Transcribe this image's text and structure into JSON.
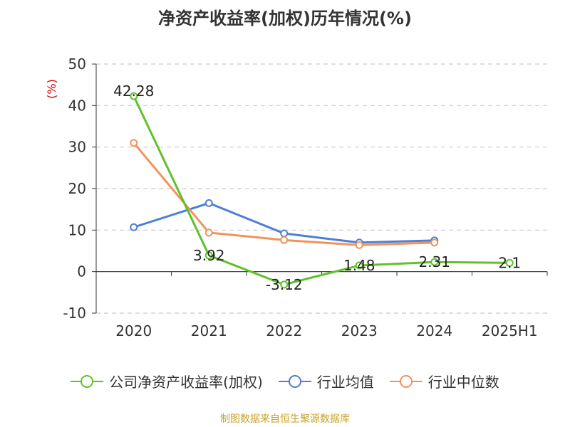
{
  "source_note": "制图数据来自恒生聚源数据库",
  "colors": {
    "company": "#5fc22a",
    "industry_avg": "#4e7fd6",
    "industry_median": "#f4925b",
    "axis": "#333333",
    "grid": "#cccccc",
    "unit": "#cc0000"
  },
  "chart_data": {
    "type": "line",
    "title": "净资产收益率(加权)历年情况(%)",
    "ylabel": "(%)",
    "xlabel": "",
    "categories": [
      "2020",
      "2021",
      "2022",
      "2023",
      "2024",
      "2025H1"
    ],
    "ylim": [
      -10,
      50
    ],
    "yticks": [
      -10,
      0,
      10,
      20,
      30,
      40,
      50
    ],
    "grid": true,
    "legend_position": "bottom",
    "series": [
      {
        "name": "公司净资产收益率(加权)",
        "color_key": "company",
        "values": [
          42.28,
          3.92,
          -3.12,
          1.48,
          2.31,
          2.1
        ],
        "show_labels": true
      },
      {
        "name": "行业均值",
        "color_key": "industry_avg",
        "values": [
          10.7,
          16.5,
          9.2,
          7.0,
          7.5,
          null
        ],
        "show_labels": false
      },
      {
        "name": "行业中位数",
        "color_key": "industry_median",
        "values": [
          31.0,
          9.4,
          7.6,
          6.4,
          7.0,
          null
        ],
        "show_labels": false
      }
    ]
  }
}
